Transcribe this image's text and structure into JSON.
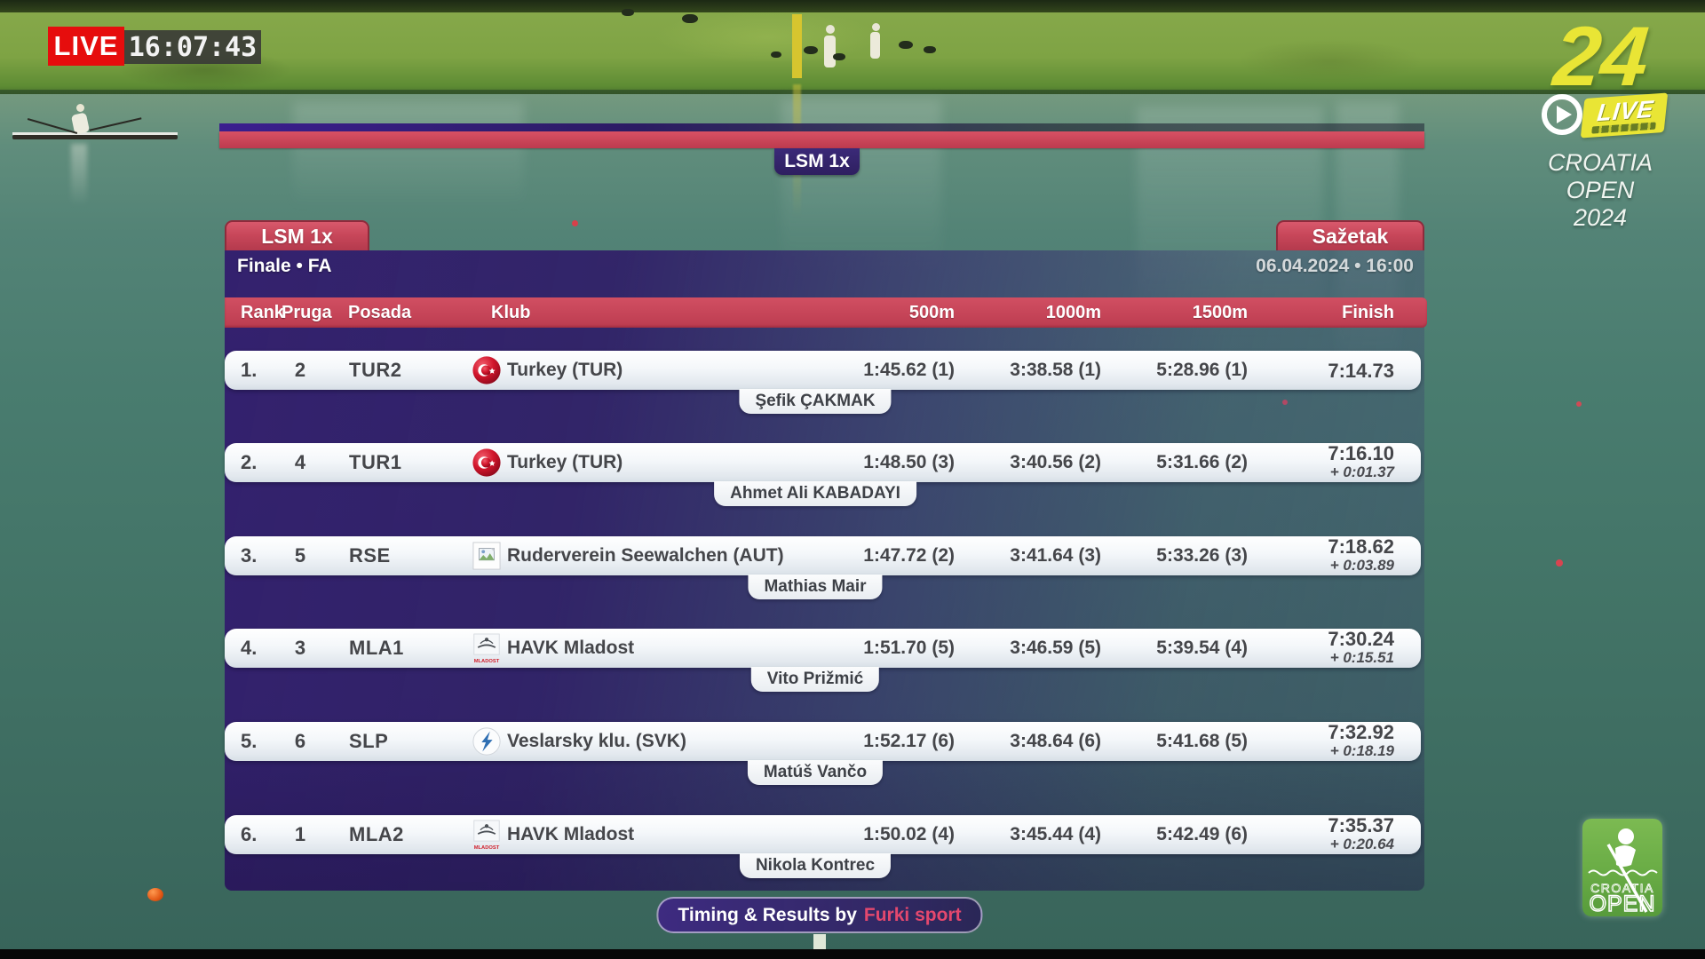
{
  "broadcast": {
    "live_label": "LIVE",
    "clock": "16:07:43"
  },
  "channel": {
    "number": "24",
    "live_label": "LIVE",
    "event_lines": [
      "CROATIA",
      "OPEN",
      "2024"
    ]
  },
  "corner_logo": {
    "line1": "CROATIA",
    "line2": "OPEN"
  },
  "scoreboard": {
    "top_tab": "LSM 1x",
    "event_tab": "LSM 1x",
    "summary_tab": "Sažetak",
    "phase": "Finale • FA",
    "datetime": "06.04.2024 • 16:00",
    "columns": [
      "Rank",
      "Pruga",
      "Posada",
      "Klub",
      "500m",
      "1000m",
      "1500m",
      "Finish"
    ],
    "rows": [
      {
        "rank": "1.",
        "lane": "2",
        "crew": "TUR2",
        "icon": "turkey-flag",
        "club": "Turkey (TUR)",
        "s500": "1:45.62 (1)",
        "s1000": "3:38.58 (1)",
        "s1500": "5:28.96 (1)",
        "finish": "7:14.73",
        "diff": "",
        "athlete": "Şefik ÇAKMAK"
      },
      {
        "rank": "2.",
        "lane": "4",
        "crew": "TUR1",
        "icon": "turkey-flag",
        "club": "Turkey (TUR)",
        "s500": "1:48.50 (3)",
        "s1000": "3:40.56 (2)",
        "s1500": "5:31.66 (2)",
        "finish": "7:16.10",
        "diff": "+ 0:01.37",
        "athlete": "Ahmet Ali KABADAYI"
      },
      {
        "rank": "3.",
        "lane": "5",
        "crew": "RSE",
        "icon": "broken-image",
        "club": "Ruderverein Seewalchen (AUT)",
        "s500": "1:47.72 (2)",
        "s1000": "3:41.64 (3)",
        "s1500": "5:33.26 (3)",
        "finish": "7:18.62",
        "diff": "+ 0:03.89",
        "athlete": "Mathias Mair"
      },
      {
        "rank": "4.",
        "lane": "3",
        "crew": "MLA1",
        "icon": "mladost-logo",
        "club": "HAVK Mladost",
        "s500": "1:51.70 (5)",
        "s1000": "3:46.59 (5)",
        "s1500": "5:39.54 (4)",
        "finish": "7:30.24",
        "diff": "+ 0:15.51",
        "athlete": "Vito Prižmić"
      },
      {
        "rank": "5.",
        "lane": "6",
        "crew": "SLP",
        "icon": "veslarsky-logo",
        "club": "Veslarsky klu. (SVK)",
        "s500": "1:52.17 (6)",
        "s1000": "3:48.64 (6)",
        "s1500": "5:41.68 (5)",
        "finish": "7:32.92",
        "diff": "+ 0:18.19",
        "athlete": "Matúš Vančo"
      },
      {
        "rank": "6.",
        "lane": "1",
        "crew": "MLA2",
        "icon": "mladost-logo",
        "club": "HAVK Mladost",
        "s500": "1:50.02 (4)",
        "s1000": "3:45.44 (4)",
        "s1500": "5:42.49 (6)",
        "finish": "7:35.37",
        "diff": "+ 0:20.64",
        "athlete": "Nikola Kontrec"
      }
    ],
    "footer": {
      "prefix": "Timing & Results by",
      "brand": "Furki sport"
    }
  },
  "colors": {
    "accent_red": "#c64255",
    "panel_purple": "#362173",
    "brand_yellow": "#e9e535",
    "brand_pink": "#e4486e",
    "logo_green": "#69ac45",
    "live_red": "#e60d0d"
  }
}
